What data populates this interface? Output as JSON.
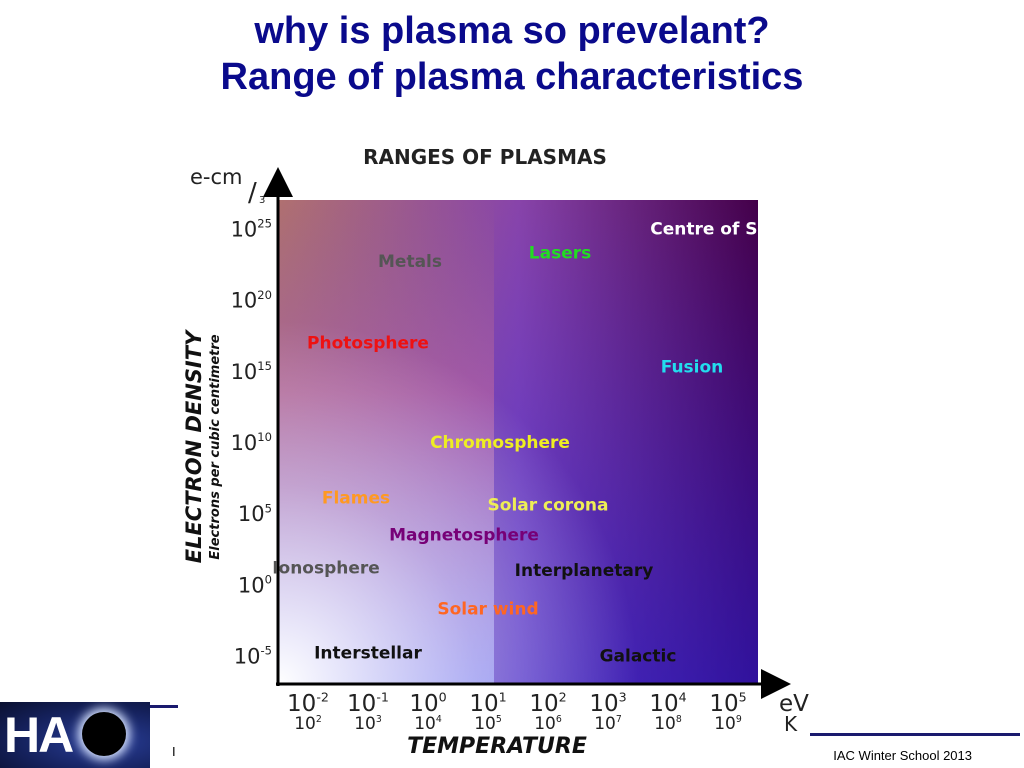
{
  "slide": {
    "title_line1": "why is plasma so prevelant?",
    "title_line2": "Range of plasma characteristics",
    "footer_text": "IAC Winter School 2013",
    "footer_left_mark": "I",
    "logo_text": "HA"
  },
  "chart_data": {
    "type": "scatter",
    "title": "RANGES OF PLASMAS",
    "ylabel": "ELECTRON DENSITY",
    "ylabel_sub": "Electrons per cubic centimetre",
    "xlabel": "TEMPERATURE",
    "y_unit": "e-cm",
    "y_unit_sup": "3",
    "x_unit_ev": "eV",
    "x_unit_k": "K",
    "y_ticks": [
      {
        "exp": 25,
        "base": "10",
        "sup": "25"
      },
      {
        "exp": 20,
        "base": "10",
        "sup": "20"
      },
      {
        "exp": 15,
        "base": "10",
        "sup": "15"
      },
      {
        "exp": 10,
        "base": "10",
        "sup": "10"
      },
      {
        "exp": 5,
        "base": "10",
        "sup": "5"
      },
      {
        "exp": 0,
        "base": "10",
        "sup": "0"
      },
      {
        "exp": -5,
        "base": "10",
        "sup": "-5"
      }
    ],
    "x_ticks_ev": [
      {
        "exp": -2,
        "base": "10",
        "sup": "-2"
      },
      {
        "exp": -1,
        "base": "10",
        "sup": "-1"
      },
      {
        "exp": 0,
        "base": "10",
        "sup": "0"
      },
      {
        "exp": 1,
        "base": "10",
        "sup": "1"
      },
      {
        "exp": 2,
        "base": "10",
        "sup": "2"
      },
      {
        "exp": 3,
        "base": "10",
        "sup": "3"
      },
      {
        "exp": 4,
        "base": "10",
        "sup": "4"
      },
      {
        "exp": 5,
        "base": "10",
        "sup": "5"
      }
    ],
    "x_ticks_k": [
      {
        "exp": -2,
        "base": "10",
        "sup": "2"
      },
      {
        "exp": -1,
        "base": "10",
        "sup": "3"
      },
      {
        "exp": 0,
        "base": "10",
        "sup": "4"
      },
      {
        "exp": 1,
        "base": "10",
        "sup": "5"
      },
      {
        "exp": 2,
        "base": "10",
        "sup": "6"
      },
      {
        "exp": 3,
        "base": "10",
        "sup": "7"
      },
      {
        "exp": 4,
        "base": "10",
        "sup": "8"
      },
      {
        "exp": 5,
        "base": "10",
        "sup": "9"
      }
    ],
    "xlim_log_ev": [
      -2.5,
      5.5
    ],
    "ylim_log": [
      -7,
      27
    ],
    "regions": [
      {
        "name": "Centre of Sun",
        "log_t_ev": 4.8,
        "log_n": 25.0,
        "color": "#ffffff"
      },
      {
        "name": "Lasers",
        "log_t_ev": 2.2,
        "log_n": 23.3,
        "color": "#22dd22"
      },
      {
        "name": "Metals",
        "log_t_ev": -0.3,
        "log_n": 22.7,
        "color": "#555555"
      },
      {
        "name": "Photosphere",
        "log_t_ev": -1.0,
        "log_n": 17.0,
        "color": "#ee1111"
      },
      {
        "name": "Fusion",
        "log_t_ev": 4.4,
        "log_n": 15.3,
        "color": "#22ddee"
      },
      {
        "name": "Chromosphere",
        "log_t_ev": 1.2,
        "log_n": 10.0,
        "color": "#eeee22"
      },
      {
        "name": "Flames",
        "log_t_ev": -1.2,
        "log_n": 6.1,
        "color": "#ff9922"
      },
      {
        "name": "Solar corona",
        "log_t_ev": 2.0,
        "log_n": 5.6,
        "color": "#eeee55"
      },
      {
        "name": "Magnetosphere",
        "log_t_ev": 0.6,
        "log_n": 3.5,
        "color": "#770077"
      },
      {
        "name": "Ionosphere",
        "log_t_ev": -1.7,
        "log_n": 1.2,
        "color": "#555555"
      },
      {
        "name": "Interplanetary",
        "log_t_ev": 2.6,
        "log_n": 1.0,
        "color": "#111111"
      },
      {
        "name": "Solar wind",
        "log_t_ev": 1.0,
        "log_n": -1.7,
        "color": "#ff6622"
      },
      {
        "name": "Interstellar",
        "log_t_ev": -1.0,
        "log_n": -4.8,
        "color": "#111111"
      },
      {
        "name": "Galactic",
        "log_t_ev": 3.5,
        "log_n": -5.0,
        "color": "#111111"
      }
    ],
    "gradient_colors": {
      "top_left": "#b07070",
      "bottom_left": "#ffffff",
      "top_right": "#44004a",
      "bottom_right": "#00007a",
      "mid_violet": "#8844aa",
      "mid_blue": "#6a70ff",
      "left_pink": "#f07c88"
    },
    "grid": false
  }
}
